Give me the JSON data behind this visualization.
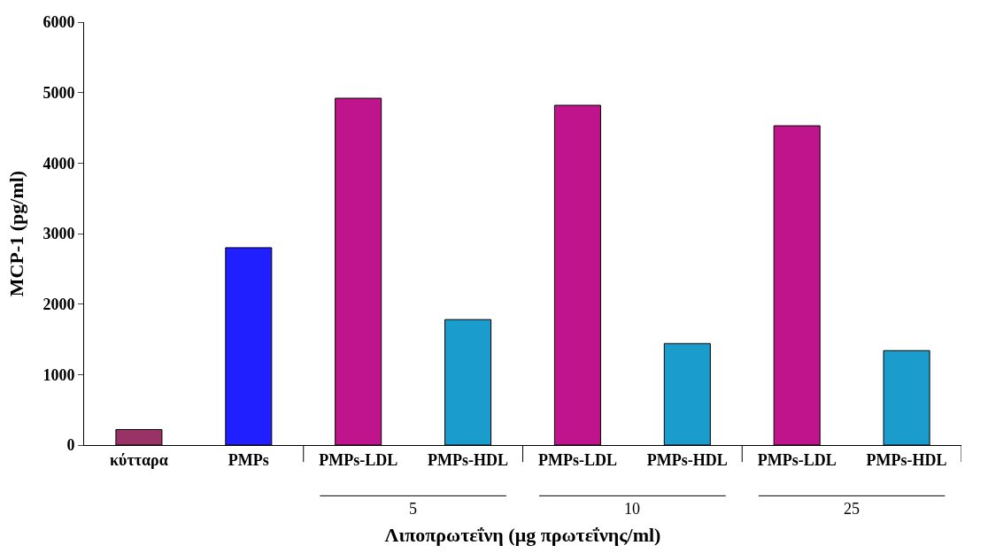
{
  "chart_data": {
    "type": "bar",
    "categories": [
      "κύτταρα",
      "PMPs",
      "PMPs-LDL",
      "PMPs-HDL",
      "PMPs-LDL",
      "PMPs-HDL",
      "PMPs-LDL",
      "PMPs-HDL"
    ],
    "values": [
      220,
      2800,
      4920,
      1780,
      4820,
      1440,
      4530,
      1340
    ],
    "colors": [
      "#993366",
      "#1f1fff",
      "#c0148c",
      "#1a9ccc",
      "#c0148c",
      "#1a9ccc",
      "#c0148c",
      "#1a9ccc"
    ],
    "xlabel": "Λιποπρωτεΐνη (μg πρωτεΐνης/ml)",
    "ylabel": "MCP-1 (pg/ml)",
    "ylim": [
      0,
      6000
    ],
    "yticks": [
      0,
      1000,
      2000,
      3000,
      4000,
      5000,
      6000
    ],
    "annotations": [
      "5",
      "10",
      "25"
    ]
  }
}
